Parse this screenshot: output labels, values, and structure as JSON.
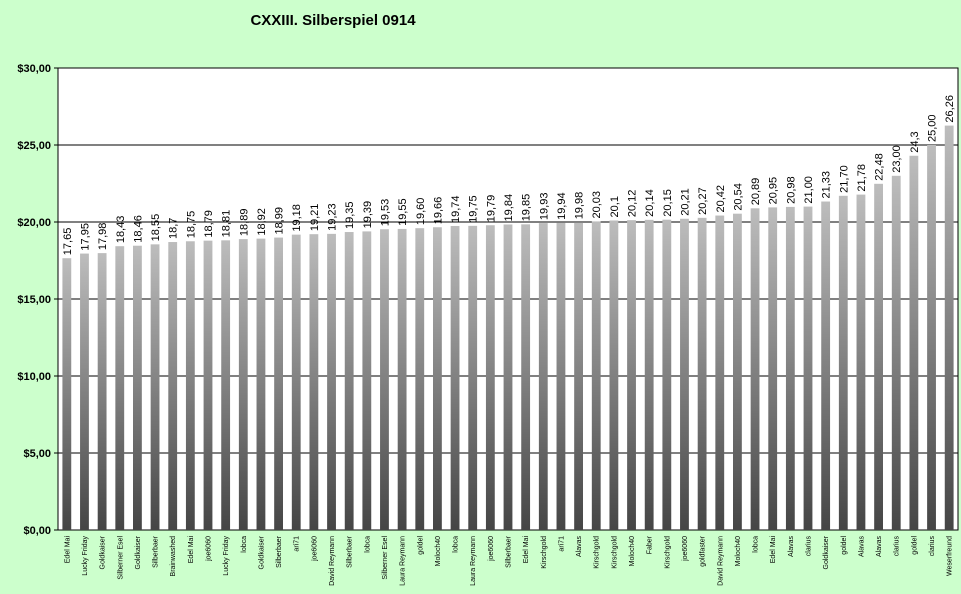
{
  "chart_data": {
    "type": "bar",
    "title": "CXXIII. Silberspiel 0914",
    "ylim": [
      0,
      30
    ],
    "ytick_step": 5,
    "ytick_labels": [
      "$0,00",
      "$5,00",
      "$10,00",
      "$15,00",
      "$20,00",
      "$25,00",
      "$30,00"
    ],
    "grid": true,
    "legend": "none",
    "bar_color": "#808080",
    "plot_background": "#ffffff",
    "categories": [
      "Edel Mai",
      "Lucky Friday",
      "Goldkaiser",
      "Silberner Esel",
      "Goldkaiser",
      "Silberbaer",
      "Brainwashed",
      "Edel Mai",
      "joe6060",
      "Lucky Friday",
      "lobca",
      "Goldkaiser",
      "Silberbaer",
      "ari71",
      "joe6060",
      "David Reymann",
      "Silberbaer",
      "lobca",
      "Silberner Esel",
      "Laura Reymann",
      "goldel",
      "Moloch40",
      "lobca",
      "Laura Reymann",
      "joe6060",
      "Silberbaer",
      "Edel Mai",
      "Kirschgold",
      "ari71",
      "Alavas",
      "Kirschgold",
      "Kirschgold",
      "Moloch40",
      "Faber",
      "Kirschgold",
      "joe6060",
      "goldfaster",
      "David Reymann",
      "Moloch40",
      "lobca",
      "Edel Mai",
      "Alavas",
      "clarius",
      "Goldkaiser",
      "goldel",
      "Alavas",
      "Alavas",
      "clarius",
      "goldel",
      "clarius",
      "Weserfreund"
    ],
    "values": [
      17.65,
      17.95,
      17.98,
      18.43,
      18.46,
      18.55,
      18.7,
      18.75,
      18.79,
      18.81,
      18.89,
      18.92,
      18.99,
      19.18,
      19.21,
      19.23,
      19.35,
      19.39,
      19.53,
      19.55,
      19.6,
      19.66,
      19.74,
      19.75,
      19.79,
      19.84,
      19.85,
      19.93,
      19.94,
      19.98,
      20.03,
      20.1,
      20.12,
      20.14,
      20.15,
      20.21,
      20.27,
      20.42,
      20.54,
      20.89,
      20.95,
      20.98,
      21.0,
      21.33,
      21.7,
      21.78,
      22.48,
      23.0,
      24.3,
      25.0,
      26.26
    ],
    "data_labels": [
      "17,65",
      "17,95",
      "17,98",
      "18,43",
      "18,46",
      "18,55",
      "18,7",
      "18,75",
      "18,79",
      "18,81",
      "18,89",
      "18,92",
      "18,99",
      "19,18",
      "19,21",
      "19,23",
      "19,35",
      "19,39",
      "19,53",
      "19,55",
      "19,60",
      "19,66",
      "19,74",
      "19,75",
      "19,79",
      "19,84",
      "19,85",
      "19,93",
      "19,94",
      "19,98",
      "20,03",
      "20,1",
      "20,12",
      "20,14",
      "20,15",
      "20,21",
      "20,27",
      "20,42",
      "20,54",
      "20,89",
      "20,95",
      "20,98",
      "21,00",
      "21,33",
      "21,70",
      "21,78",
      "22,48",
      "23,00",
      "24,3",
      "25,00",
      "26,26"
    ]
  }
}
